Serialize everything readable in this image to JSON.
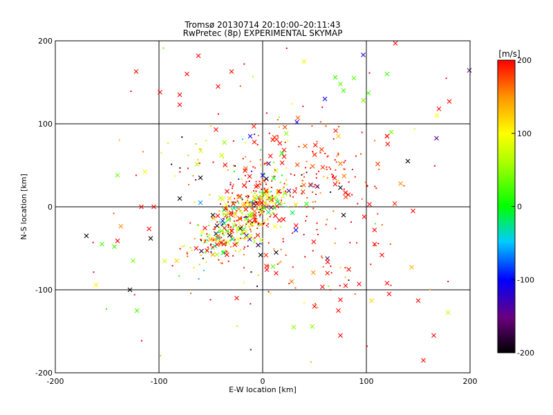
{
  "chart_data": {
    "type": "scatter",
    "title": "Tromsø 20130714 20:10:00–20:11:43",
    "subtitle": "RwPretec (8p) EXPERIMENTAL SKYMAP",
    "xlabel": "E-W location [km]",
    "ylabel": "N-S location [km]",
    "xlim": [
      -200,
      200
    ],
    "ylim": [
      -200,
      200
    ],
    "x_ticks": [
      "-200",
      "-100",
      "0",
      "100",
      "200"
    ],
    "y_ticks": [
      "-200",
      "-100",
      "0",
      "100",
      "200"
    ],
    "grid": true,
    "colorbar": {
      "label": "[m/s]",
      "range": [
        -200,
        200
      ],
      "ticks": [
        "-200",
        "-100",
        "0",
        "100",
        "200"
      ],
      "colormap": "rainbow: black-purple-blue-cyan-green-yellow-orange-red"
    },
    "marker_types": [
      "x (large)",
      "dot (small)"
    ],
    "density_note": "dense cluster along a diagonal band from about (-60,-50) to (10,10) km, secondary cluster near (60,40) km",
    "point_clusters": [
      {
        "center": [
          -30,
          -30
        ],
        "spread": [
          22,
          20
        ],
        "count": 260,
        "value_mean": 120,
        "value_spread": 110,
        "corr": 0.65
      },
      {
        "center": [
          -5,
          5
        ],
        "spread": [
          18,
          15
        ],
        "count": 220,
        "value_mean": 120,
        "value_spread": 110,
        "corr": 0.3
      },
      {
        "center": [
          55,
          45
        ],
        "spread": [
          30,
          25
        ],
        "count": 120,
        "value_mean": 190,
        "value_spread": 20,
        "corr": 0
      },
      {
        "center": [
          40,
          -60
        ],
        "spread": [
          45,
          35
        ],
        "count": 70,
        "value_mean": 190,
        "value_spread": 20,
        "corr": 0
      },
      {
        "center": [
          -20,
          60
        ],
        "spread": [
          40,
          30
        ],
        "count": 70,
        "value_mean": 140,
        "value_spread": 80,
        "corr": 0
      },
      {
        "center": [
          0,
          0
        ],
        "spread": [
          120,
          110
        ],
        "count": 90,
        "value_mean": 160,
        "value_spread": 90,
        "corr": 0
      }
    ],
    "highlight_points": [
      {
        "x": -122,
        "y": 163,
        "v": 200,
        "m": "x"
      },
      {
        "x": -99,
        "y": 138,
        "v": 200,
        "m": "x"
      },
      {
        "x": -73,
        "y": 160,
        "v": 200,
        "m": "x"
      },
      {
        "x": -80,
        "y": 135,
        "v": 200,
        "m": "x"
      },
      {
        "x": -80,
        "y": 123,
        "v": 200,
        "m": "x"
      },
      {
        "x": -62,
        "y": 182,
        "v": 200,
        "m": "x"
      },
      {
        "x": -30,
        "y": 163,
        "v": 200,
        "m": "x"
      },
      {
        "x": -43,
        "y": 145,
        "v": 200,
        "m": "x"
      },
      {
        "x": 40,
        "y": 175,
        "v": 90,
        "m": "x"
      },
      {
        "x": 97,
        "y": 183,
        "v": -120,
        "m": "x"
      },
      {
        "x": 128,
        "y": 197,
        "v": 200,
        "m": "x"
      },
      {
        "x": 60,
        "y": 130,
        "v": -110,
        "m": "x"
      },
      {
        "x": 70,
        "y": 156,
        "v": 20,
        "m": "x"
      },
      {
        "x": 75,
        "y": 148,
        "v": 30,
        "m": "x"
      },
      {
        "x": 78,
        "y": 140,
        "v": 20,
        "m": "x"
      },
      {
        "x": 88,
        "y": 155,
        "v": 30,
        "m": "x"
      },
      {
        "x": 102,
        "y": 137,
        "v": 20,
        "m": "x"
      },
      {
        "x": 120,
        "y": 160,
        "v": 20,
        "m": "x"
      },
      {
        "x": 168,
        "y": 110,
        "v": 100,
        "m": "x"
      },
      {
        "x": 170,
        "y": 118,
        "v": 200,
        "m": "x"
      },
      {
        "x": 180,
        "y": 127,
        "v": 200,
        "m": "x"
      },
      {
        "x": 124,
        "y": 90,
        "v": 40,
        "m": "x"
      },
      {
        "x": 120,
        "y": 85,
        "v": 200,
        "m": "x"
      },
      {
        "x": 140,
        "y": 55,
        "v": -200,
        "m": "x"
      },
      {
        "x": 133,
        "y": 28,
        "v": 150,
        "m": "x"
      },
      {
        "x": 33,
        "y": 102,
        "v": -110,
        "m": "x"
      },
      {
        "x": -140,
        "y": 38,
        "v": 40,
        "m": "x"
      },
      {
        "x": -155,
        "y": -45,
        "v": 20,
        "m": "x"
      },
      {
        "x": -143,
        "y": -48,
        "v": 20,
        "m": "x"
      },
      {
        "x": -140,
        "y": -41,
        "v": 200,
        "m": "x"
      },
      {
        "x": -125,
        "y": -65,
        "v": 40,
        "m": "x"
      },
      {
        "x": -117,
        "y": 0,
        "v": 200,
        "m": "x"
      },
      {
        "x": -105,
        "y": 0,
        "v": 200,
        "m": "x"
      },
      {
        "x": -108,
        "y": -38,
        "v": -200,
        "m": "x"
      },
      {
        "x": -128,
        "y": -100,
        "v": -200,
        "m": "x"
      },
      {
        "x": -170,
        "y": -35,
        "v": -200,
        "m": "x"
      },
      {
        "x": -80,
        "y": 10,
        "v": -200,
        "m": "x"
      },
      {
        "x": -60,
        "y": 35,
        "v": -200,
        "m": "x"
      },
      {
        "x": -60,
        "y": 5,
        "v": -60,
        "m": "x"
      },
      {
        "x": -48,
        "y": -10,
        "v": -200,
        "m": "x"
      },
      {
        "x": 98,
        "y": -12,
        "v": 200,
        "m": "x"
      },
      {
        "x": 103,
        "y": 3,
        "v": 200,
        "m": "x"
      },
      {
        "x": 145,
        "y": -5,
        "v": 200,
        "m": "x"
      },
      {
        "x": 108,
        "y": -45,
        "v": 200,
        "m": "x"
      },
      {
        "x": 105,
        "y": -113,
        "v": 120,
        "m": "x"
      },
      {
        "x": 150,
        "y": -113,
        "v": 200,
        "m": "x"
      },
      {
        "x": 75,
        "y": -112,
        "v": 200,
        "m": "x"
      },
      {
        "x": 73,
        "y": -125,
        "v": 200,
        "m": "x"
      },
      {
        "x": 50,
        "y": -120,
        "v": 200,
        "m": "x"
      },
      {
        "x": 28,
        "y": -90,
        "v": 160,
        "m": "x"
      },
      {
        "x": 13,
        "y": -80,
        "v": 200,
        "m": "x"
      },
      {
        "x": 32,
        "y": -28,
        "v": -100,
        "m": "x"
      },
      {
        "x": 78,
        "y": -10,
        "v": -200,
        "m": "x"
      },
      {
        "x": 80,
        "y": -95,
        "v": 200,
        "m": "x"
      },
      {
        "x": -25,
        "y": -110,
        "v": 200,
        "m": "x"
      },
      {
        "x": 10,
        "y": -72,
        "v": 30,
        "m": "x"
      },
      {
        "x": 13,
        "y": -55,
        "v": -200,
        "m": "x"
      },
      {
        "x": -2,
        "y": -58,
        "v": -200,
        "m": "x"
      },
      {
        "x": 0,
        "y": 38,
        "v": -110,
        "m": "x"
      },
      {
        "x": -12,
        "y": 85,
        "v": -110,
        "m": "x"
      },
      {
        "x": -8,
        "y": 78,
        "v": 200,
        "m": "x"
      },
      {
        "x": -45,
        "y": 93,
        "v": 200,
        "m": "x"
      },
      {
        "x": 73,
        "y": 85,
        "v": 130,
        "m": "x"
      },
      {
        "x": 75,
        "y": 23,
        "v": -200,
        "m": "x"
      },
      {
        "x": 115,
        "y": -58,
        "v": 200,
        "m": "x"
      },
      {
        "x": 120,
        "y": -92,
        "v": 200,
        "m": "x"
      },
      {
        "x": 155,
        "y": -185,
        "v": 200,
        "m": "x"
      },
      {
        "x": 122,
        "y": -105,
        "v": 200,
        "m": "x"
      },
      {
        "x": 165,
        "y": -155,
        "v": 200,
        "m": "x"
      },
      {
        "x": 30,
        "y": -145,
        "v": 50,
        "m": "x"
      },
      {
        "x": 93,
        "y": -93,
        "v": 200,
        "m": "x"
      },
      {
        "x": 75,
        "y": -155,
        "v": 200,
        "m": "x"
      }
    ]
  }
}
